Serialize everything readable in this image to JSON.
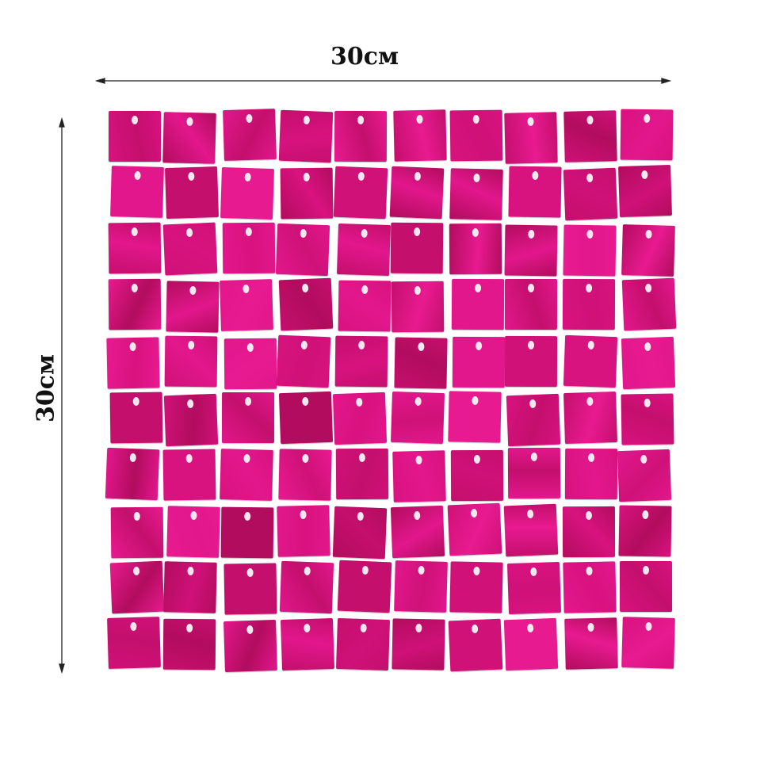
{
  "dimensions": {
    "width_label": "30см",
    "height_label": "30см"
  },
  "panel": {
    "rows": 10,
    "columns": 10,
    "tile_colors": [
      "#d8127f",
      "#c40f6d",
      "#e2178c",
      "#b20c5e",
      "#cf1178",
      "#e81a90"
    ]
  }
}
